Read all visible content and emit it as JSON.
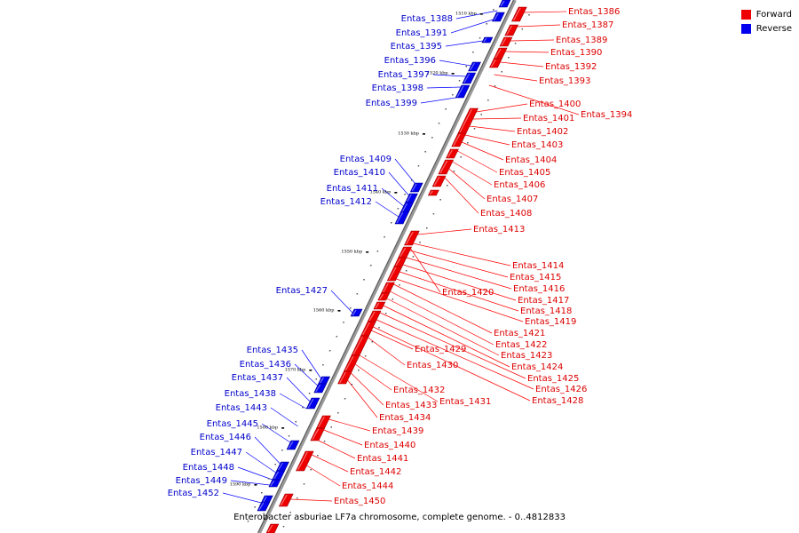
{
  "legend": {
    "forward": {
      "label": "Forward",
      "color": "#ee0000"
    },
    "reverse": {
      "label": "Reverse",
      "color": "#0000ee"
    }
  },
  "caption": "Enterobacter asburiae LF7a chromosome, complete genome. - 0..4812833",
  "ticks": [
    "1510 kbp",
    "1520 kbp",
    "1530 kbp",
    "1540 kbp",
    "1550 kbp",
    "1560 kbp",
    "1570 kbp",
    "1580 kbp",
    "1590 kbp"
  ],
  "forward_genes": [
    "Entas_1386",
    "Entas_1387",
    "Entas_1389",
    "Entas_1390",
    "Entas_1392",
    "Entas_1393",
    "Entas_1394",
    "Entas_1400",
    "Entas_1401",
    "Entas_1402",
    "Entas_1403",
    "Entas_1404",
    "Entas_1405",
    "Entas_1406",
    "Entas_1407",
    "Entas_1408",
    "Entas_1413",
    "Entas_1414",
    "Entas_1415",
    "Entas_1416",
    "Entas_1417",
    "Entas_1418",
    "Entas_1419",
    "Entas_1420",
    "Entas_1421",
    "Entas_1422",
    "Entas_1423",
    "Entas_1424",
    "Entas_1425",
    "Entas_1426",
    "Entas_1428",
    "Entas_1429",
    "Entas_1430",
    "Entas_1431",
    "Entas_1432",
    "Entas_1433",
    "Entas_1434",
    "Entas_1439",
    "Entas_1440",
    "Entas_1441",
    "Entas_1442",
    "Entas_1444",
    "Entas_1450"
  ],
  "reverse_genes": [
    "Entas_1388",
    "Entas_1391",
    "Entas_1395",
    "Entas_1396",
    "Entas_1397",
    "Entas_1398",
    "Entas_1399",
    "Entas_1409",
    "Entas_1410",
    "Entas_1411",
    "Entas_1412",
    "Entas_1427",
    "Entas_1435",
    "Entas_1436",
    "Entas_1437",
    "Entas_1438",
    "Entas_1443",
    "Entas_1445",
    "Entas_1446",
    "Entas_1447",
    "Entas_1448",
    "Entas_1449",
    "Entas_1452"
  ]
}
